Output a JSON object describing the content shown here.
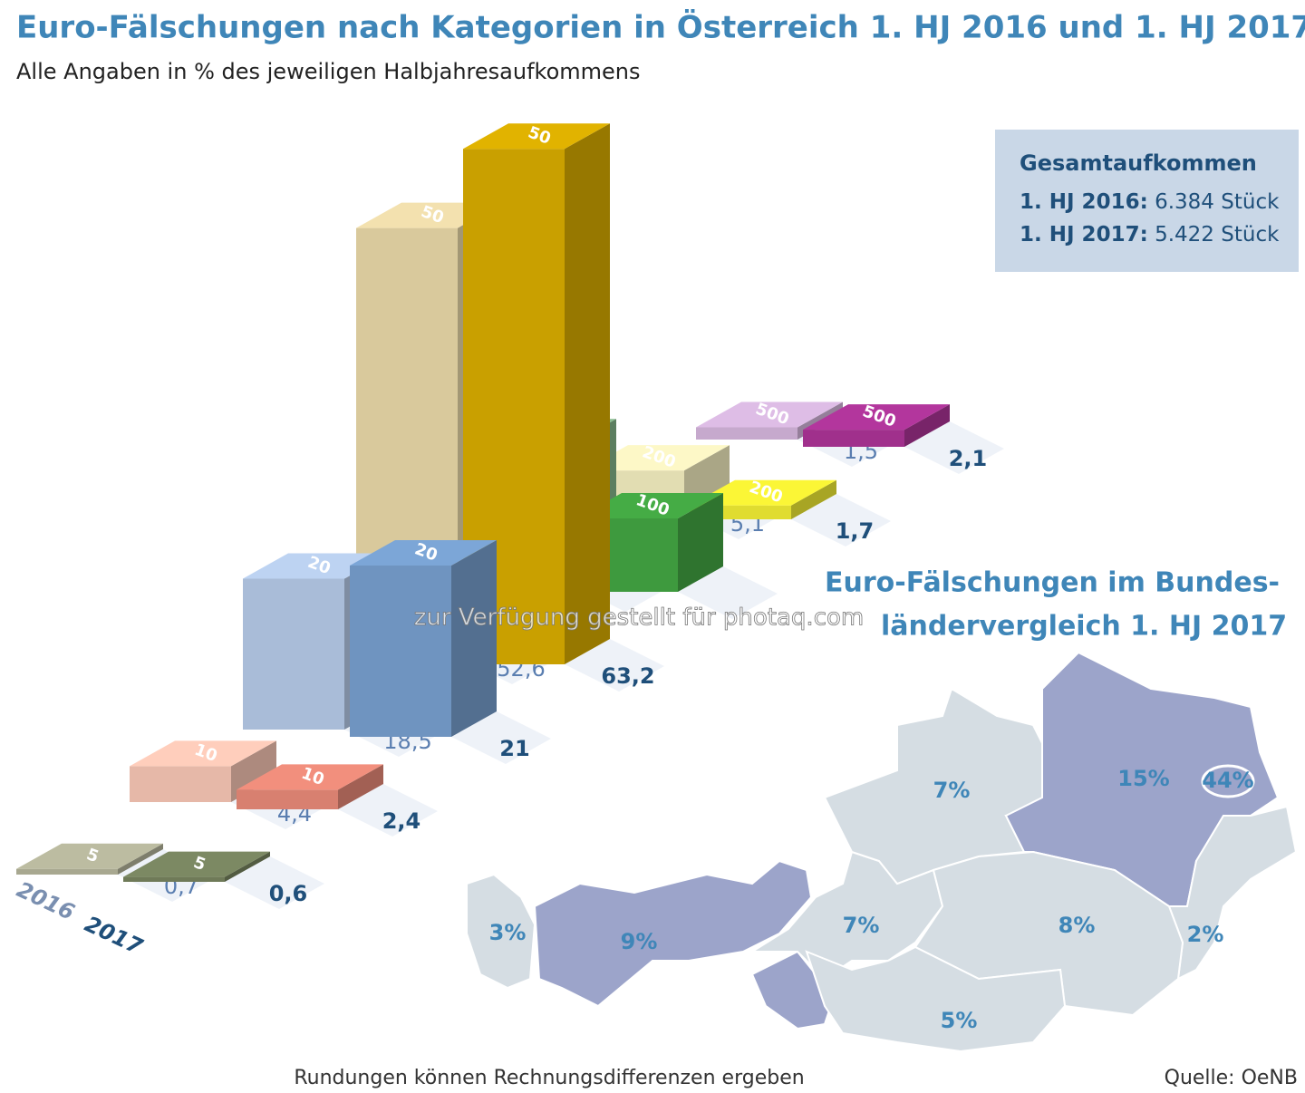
{
  "chart_data": {
    "type": "bar3d",
    "title": "Euro-Fälschungen nach Kategorien in Österreich 1. HJ 2016 und 1. HJ 2017",
    "subtitle": "Alle Angaben in % des jeweiligen Halbjahresaufkommens",
    "categories": [
      "5",
      "10",
      "20",
      "50",
      "100",
      "200",
      "500"
    ],
    "series": [
      {
        "name": "2016",
        "color": "#7a8fb0",
        "colors": [
          "#a8a890",
          "#e6b8a8",
          "#a9bcd8",
          "#d9c99c",
          "#7aa880",
          "#e2ddb2",
          "#c6a9cd"
        ],
        "values": [
          0.7,
          4.4,
          18.5,
          52.6,
          17.2,
          5.1,
          1.5
        ],
        "value_labels": [
          "0,7",
          "4,4",
          "18,5",
          "52,6",
          null,
          "5,1",
          "1,5"
        ]
      },
      {
        "name": "2017",
        "color": "#1f4f7a",
        "colors": [
          "#6f7a58",
          "#d88070",
          "#6f94c0",
          "#c9a000",
          "#3e9a3e",
          "#e0dc30",
          "#a0308c"
        ],
        "values": [
          0.6,
          2.4,
          21,
          63.2,
          9,
          1.7,
          2.1
        ],
        "value_labels": [
          "0,6",
          "2,4",
          "21",
          "63,2",
          null,
          "1,7",
          "2,1"
        ]
      }
    ]
  },
  "info_box": {
    "title": "Gesamtaufkommen",
    "lines": [
      {
        "label": "1. HJ 2016:",
        "value": "6.384 Stück"
      },
      {
        "label": "1. HJ 2017:",
        "value": "5.422 Stück"
      }
    ]
  },
  "map": {
    "title_lines": [
      "Euro-Fälschungen im Bundes-",
      "ländervergleich 1. HJ 2017"
    ],
    "values": [
      3,
      9,
      7,
      7,
      15,
      44,
      2,
      8,
      5
    ],
    "value_labels": [
      "3%",
      "9%",
      "7%",
      "7%",
      "15%",
      "44%",
      "2%",
      "8%",
      "5%"
    ],
    "colors": [
      "#d5dde3",
      "#9ca4ca",
      "#d5dde3",
      "#d5dde3",
      "#9ca4ca",
      "#9ca4ca",
      "#d5dde3",
      "#d5dde3",
      "#d5dde3"
    ]
  },
  "watermark": "zur Verfügung gestellt für photaq.com",
  "footnote": "Rundungen können Rechnungsdifferenzen ergeben",
  "source": "Quelle: OeNB"
}
